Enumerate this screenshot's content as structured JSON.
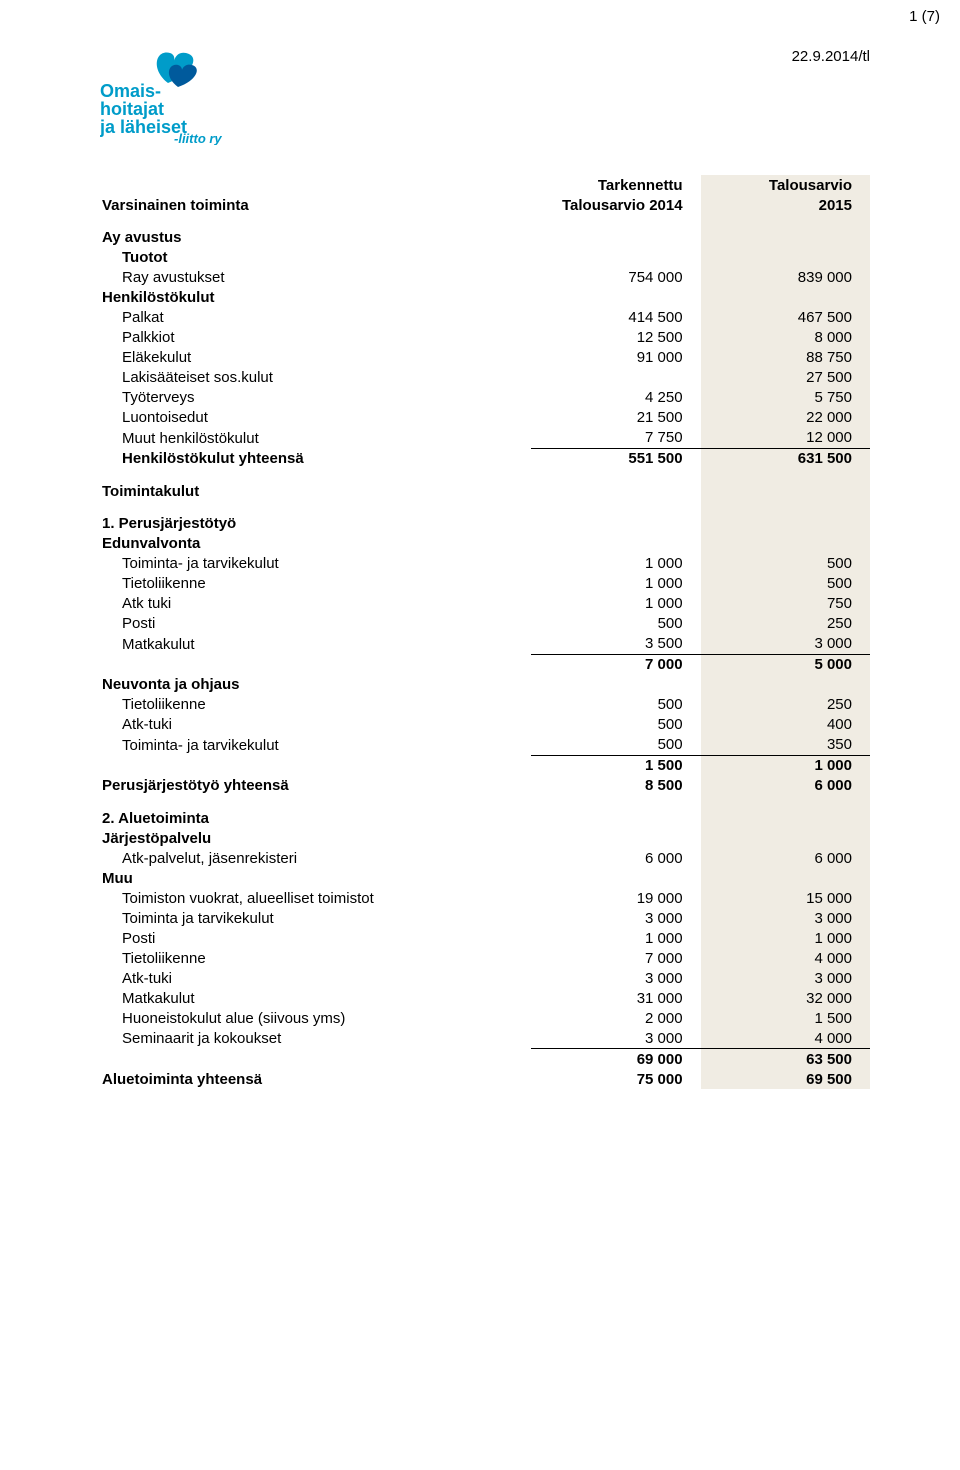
{
  "meta": {
    "page_corner": "1 (7)",
    "date_code": "22.9.2014/tl"
  },
  "logo": {
    "line1": "Omais-",
    "line2": "hoitajat",
    "line3": "ja läheiset",
    "tag": "-liitto ry",
    "text_color": "#009cc9",
    "heart_outer": "#009cc9",
    "heart_inner": "#005a9c"
  },
  "headers": {
    "col1_top": "Tarkennettu",
    "col1_bot": "Talousarvio 2014",
    "col2_top": "Talousarvio",
    "col2_bot": "2015"
  },
  "title": "Varsinainen toiminta",
  "ay": "Ay avustus",
  "tuotot_h": "Tuotot",
  "tuotot": {
    "label": "Ray avustukset",
    "v1": "754 000",
    "v2": "839 000"
  },
  "hk_h": "Henkilöstökulut",
  "hk": [
    {
      "label": "Palkat",
      "v1": "414 500",
      "v2": "467 500"
    },
    {
      "label": "Palkkiot",
      "v1": "12 500",
      "v2": "8 000"
    },
    {
      "label": "Eläkekulut",
      "v1": "91 000",
      "v2": "88 750"
    },
    {
      "label": "Lakisääteiset sos.kulut",
      "v1": "",
      "v2": "27 500"
    },
    {
      "label": "Työterveys",
      "v1": "4 250",
      "v2": "5 750"
    },
    {
      "label": "Luontoisedut",
      "v1": "21 500",
      "v2": "22 000"
    },
    {
      "label": "Muut henkilöstökulut",
      "v1": "7 750",
      "v2": "12 000"
    }
  ],
  "hk_total": {
    "label": "Henkilöstökulut yhteensä",
    "v1": "551 500",
    "v2": "631 500"
  },
  "tk_h": "Toimintakulut",
  "s1_h": "1. Perusjärjestötyö",
  "s1a_h": "Edunvalvonta",
  "s1a": [
    {
      "label": "Toiminta- ja tarvikekulut",
      "v1": "1 000",
      "v2": "500"
    },
    {
      "label": "Tietoliikenne",
      "v1": "1 000",
      "v2": "500"
    },
    {
      "label": "Atk tuki",
      "v1": "1 000",
      "v2": "750"
    },
    {
      "label": "Posti",
      "v1": "500",
      "v2": "250"
    },
    {
      "label": "Matkakulut",
      "v1": "3 500",
      "v2": "3 000"
    }
  ],
  "s1a_sum": {
    "v1": "7 000",
    "v2": "5 000"
  },
  "s1b_h": "Neuvonta ja ohjaus",
  "s1b": [
    {
      "label": "Tietoliikenne",
      "v1": "500",
      "v2": "250"
    },
    {
      "label": "Atk-tuki",
      "v1": "500",
      "v2": "400"
    },
    {
      "label": "Toiminta- ja tarvikekulut",
      "v1": "500",
      "v2": "350"
    }
  ],
  "s1b_sum": {
    "v1": "1 500",
    "v2": "1 000"
  },
  "s1_total": {
    "label": "Perusjärjestötyö yhteensä",
    "v1": "8 500",
    "v2": "6 000"
  },
  "s2_h": "2. Aluetoiminta",
  "s2a_h": "Järjestöpalvelu",
  "s2a": [
    {
      "label": "Atk-palvelut, jäsenrekisteri",
      "v1": "6 000",
      "v2": "6 000"
    }
  ],
  "s2b_h": "Muu",
  "s2b": [
    {
      "label": "Toimiston vuokrat, alueelliset toimistot",
      "v1": "19 000",
      "v2": "15 000"
    },
    {
      "label": "Toiminta ja tarvikekulut",
      "v1": "3 000",
      "v2": "3 000"
    },
    {
      "label": "Posti",
      "v1": "1 000",
      "v2": "1 000"
    },
    {
      "label": "Tietoliikenne",
      "v1": "7 000",
      "v2": "4 000"
    },
    {
      "label": "Atk-tuki",
      "v1": "3 000",
      "v2": "3 000"
    },
    {
      "label": "Matkakulut",
      "v1": "31 000",
      "v2": "32 000"
    },
    {
      "label": "Huoneistokulut alue (siivous yms)",
      "v1": "2 000",
      "v2": "1 500"
    },
    {
      "label": "Seminaarit ja kokoukset",
      "v1": "3 000",
      "v2": "4 000"
    }
  ],
  "s2b_sum": {
    "v1": "69 000",
    "v2": "63 500"
  },
  "s2_total": {
    "label": "Aluetoiminta yhteensä",
    "v1": "75 000",
    "v2": "69 500"
  }
}
